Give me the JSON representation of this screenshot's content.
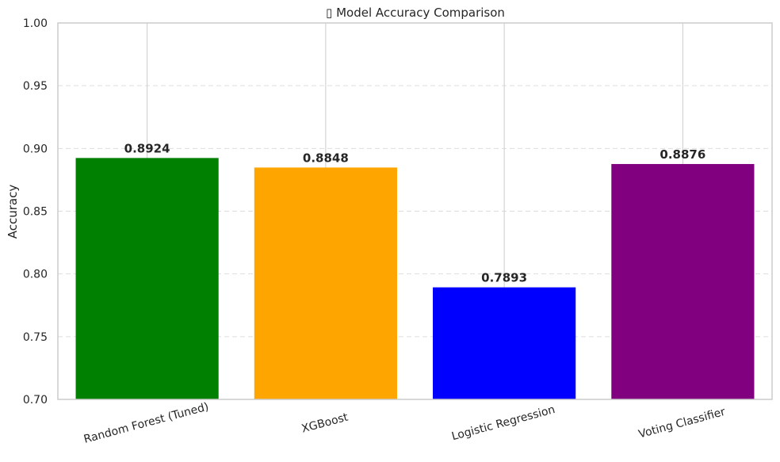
{
  "chart_data": {
    "type": "bar",
    "title": "▯ Model Accuracy Comparison",
    "xlabel": "",
    "ylabel": "Accuracy",
    "ylim": [
      0.7,
      1.0
    ],
    "yticks": [
      0.7,
      0.75,
      0.8,
      0.85,
      0.9,
      0.95,
      1.0
    ],
    "ytick_labels": [
      "0.70",
      "0.75",
      "0.80",
      "0.85",
      "0.90",
      "0.95",
      "1.00"
    ],
    "categories": [
      "Random Forest (Tuned)",
      "XGBoost",
      "Logistic Regression",
      "Voting Classifier"
    ],
    "values": [
      0.8924,
      0.8848,
      0.7893,
      0.8876
    ],
    "value_labels": [
      "0.8924",
      "0.8848",
      "0.7893",
      "0.8876"
    ],
    "colors": [
      "#008000",
      "#FFA500",
      "#0000FF",
      "#800080"
    ],
    "grid": true,
    "grid_y_style": "dashed",
    "grid_color": "#dddddd",
    "frame_color": "#cccccc"
  }
}
